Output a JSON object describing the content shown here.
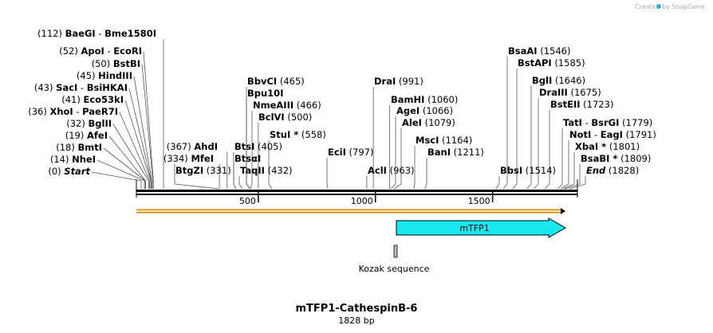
{
  "watermark": "Created by SnapGene",
  "sequence": {
    "length": 1828,
    "title": "mTFP1-CathespinB-6",
    "length_label": "1828 bp"
  },
  "axis_ticks": [
    {
      "value": 500,
      "label": "500"
    },
    {
      "value": 1000,
      "label": "1000"
    },
    {
      "value": 1500,
      "label": "1500"
    }
  ],
  "sites_left": [
    {
      "names": [
        "BaeGI",
        "Bme1580I"
      ],
      "pos": 112,
      "pos_label": "(112)",
      "star": false,
      "italic": false
    },
    {
      "names": [
        "ApoI",
        "EcoRI"
      ],
      "pos": 52,
      "pos_label": "(52)",
      "star": false,
      "italic": false
    },
    {
      "names": [
        "BstBI"
      ],
      "pos": 50,
      "pos_label": "(50)",
      "star": false,
      "italic": false
    },
    {
      "names": [
        "HindIII"
      ],
      "pos": 45,
      "pos_label": "(45)",
      "star": false,
      "italic": false
    },
    {
      "names": [
        "SacI",
        "BsiHKAI"
      ],
      "pos": 43,
      "pos_label": "(43)",
      "star": false,
      "italic": false
    },
    {
      "names": [
        "Eco53kI"
      ],
      "pos": 41,
      "pos_label": "(41)",
      "star": false,
      "italic": false
    },
    {
      "names": [
        "XhoI",
        "PaeR7I"
      ],
      "pos": 36,
      "pos_label": "(36)",
      "star": false,
      "italic": false
    },
    {
      "names": [
        "BglII"
      ],
      "pos": 32,
      "pos_label": "(32)",
      "star": false,
      "italic": false
    },
    {
      "names": [
        "AfeI"
      ],
      "pos": 19,
      "pos_label": "(19)",
      "star": false,
      "italic": false
    },
    {
      "names": [
        "BmtI"
      ],
      "pos": 18,
      "pos_label": "(18)",
      "star": false,
      "italic": false
    },
    {
      "names": [
        "NheI"
      ],
      "pos": 14,
      "pos_label": "(14)",
      "star": false,
      "italic": false
    },
    {
      "names": [
        "Start"
      ],
      "pos": 0,
      "pos_label": "(0)",
      "star": false,
      "italic": true
    }
  ],
  "sites_right": [
    {
      "names": [
        "AhdI"
      ],
      "pos": 367,
      "pos_label": "(367)",
      "star": false,
      "italic": false,
      "label_pos": "left"
    },
    {
      "names": [
        "MfeI"
      ],
      "pos": 334,
      "pos_label": "(334)",
      "star": false,
      "italic": false,
      "label_pos": "left"
    },
    {
      "names": [
        "BtgZI"
      ],
      "pos": 331,
      "pos_label": "(331)",
      "star": false,
      "italic": false,
      "label_pos": "right"
    },
    {
      "names": [
        "BbvCI"
      ],
      "pos": 465,
      "pos_label": "(465)",
      "star": false,
      "italic": false
    },
    {
      "names": [
        "Bpu10I"
      ],
      "pos": 465,
      "pos_label": "",
      "star": false,
      "italic": false
    },
    {
      "names": [
        "NmeAIII"
      ],
      "pos": 466,
      "pos_label": "(466)",
      "star": false,
      "italic": false
    },
    {
      "names": [
        "BclVI"
      ],
      "pos": 500,
      "pos_label": "(500)",
      "star": false,
      "italic": false
    },
    {
      "names": [
        "StuI"
      ],
      "pos": 558,
      "pos_label": "(558)",
      "star": true,
      "italic": false
    },
    {
      "names": [
        "BtsI"
      ],
      "pos": 405,
      "pos_label": "(405)",
      "star": false,
      "italic": false
    },
    {
      "names": [
        "BtsαI"
      ],
      "pos": 405,
      "pos_label": "",
      "star": false,
      "italic": false
    },
    {
      "names": [
        "TaqII"
      ],
      "pos": 432,
      "pos_label": "(432)",
      "star": false,
      "italic": false
    },
    {
      "names": [
        "EciI"
      ],
      "pos": 797,
      "pos_label": "(797)",
      "star": false,
      "italic": false
    },
    {
      "names": [
        "DraI"
      ],
      "pos": 991,
      "pos_label": "(991)",
      "star": false,
      "italic": false
    },
    {
      "names": [
        "AclI"
      ],
      "pos": 963,
      "pos_label": "(963)",
      "star": false,
      "italic": false
    },
    {
      "names": [
        "BamHI"
      ],
      "pos": 1060,
      "pos_label": "(1060)",
      "star": false,
      "italic": false
    },
    {
      "names": [
        "AgeI"
      ],
      "pos": 1066,
      "pos_label": "(1066)",
      "star": false,
      "italic": false
    },
    {
      "names": [
        "AleI"
      ],
      "pos": 1079,
      "pos_label": "(1079)",
      "star": false,
      "italic": false
    },
    {
      "names": [
        "MscI"
      ],
      "pos": 1164,
      "pos_label": "(1164)",
      "star": false,
      "italic": false
    },
    {
      "names": [
        "BanI"
      ],
      "pos": 1211,
      "pos_label": "(1211)",
      "star": false,
      "italic": false
    },
    {
      "names": [
        "BsaAI"
      ],
      "pos": 1546,
      "pos_label": "(1546)",
      "star": false,
      "italic": false
    },
    {
      "names": [
        "BstAPI"
      ],
      "pos": 1585,
      "pos_label": "(1585)",
      "star": false,
      "italic": false
    },
    {
      "names": [
        "BglI"
      ],
      "pos": 1646,
      "pos_label": "(1646)",
      "star": false,
      "italic": false
    },
    {
      "names": [
        "DraIII"
      ],
      "pos": 1675,
      "pos_label": "(1675)",
      "star": false,
      "italic": false
    },
    {
      "names": [
        "BstEII"
      ],
      "pos": 1723,
      "pos_label": "(1723)",
      "star": false,
      "italic": false
    },
    {
      "names": [
        "BbsI"
      ],
      "pos": 1514,
      "pos_label": "(1514)",
      "star": false,
      "italic": false
    },
    {
      "names": [
        "TatI",
        "BsrGI"
      ],
      "pos": 1779,
      "pos_label": "(1779)",
      "star": false,
      "italic": false
    },
    {
      "names": [
        "NotI",
        "EagI"
      ],
      "pos": 1791,
      "pos_label": "(1791)",
      "star": false,
      "italic": false
    },
    {
      "names": [
        "XbaI"
      ],
      "pos": 1801,
      "pos_label": "(1801)",
      "star": true,
      "italic": false
    },
    {
      "names": [
        "BsaBI"
      ],
      "pos": 1809,
      "pos_label": "(1809)",
      "star": true,
      "italic": false
    },
    {
      "names": [
        "End"
      ],
      "pos": 1828,
      "pos_label": "(1828)",
      "star": false,
      "italic": true
    }
  ],
  "features": [
    {
      "name": "ORF",
      "label": "",
      "start": 0,
      "end": 1828,
      "color": "#f6a623",
      "type": "orf-arrow"
    },
    {
      "name": "mTFP1",
      "label": "mTFP1",
      "start": 1097,
      "end": 1828,
      "color": "#19e8ee",
      "type": "arrow"
    },
    {
      "name": "Kozak sequence",
      "label": "Kozak sequence",
      "start": 1087,
      "end": 1097,
      "color": "#bdbdbd",
      "type": "box"
    }
  ],
  "colors": {
    "backbone": "#000000",
    "leader": "#444444",
    "orf": "#f6a623",
    "watermark_logo": "#36a9e1"
  }
}
